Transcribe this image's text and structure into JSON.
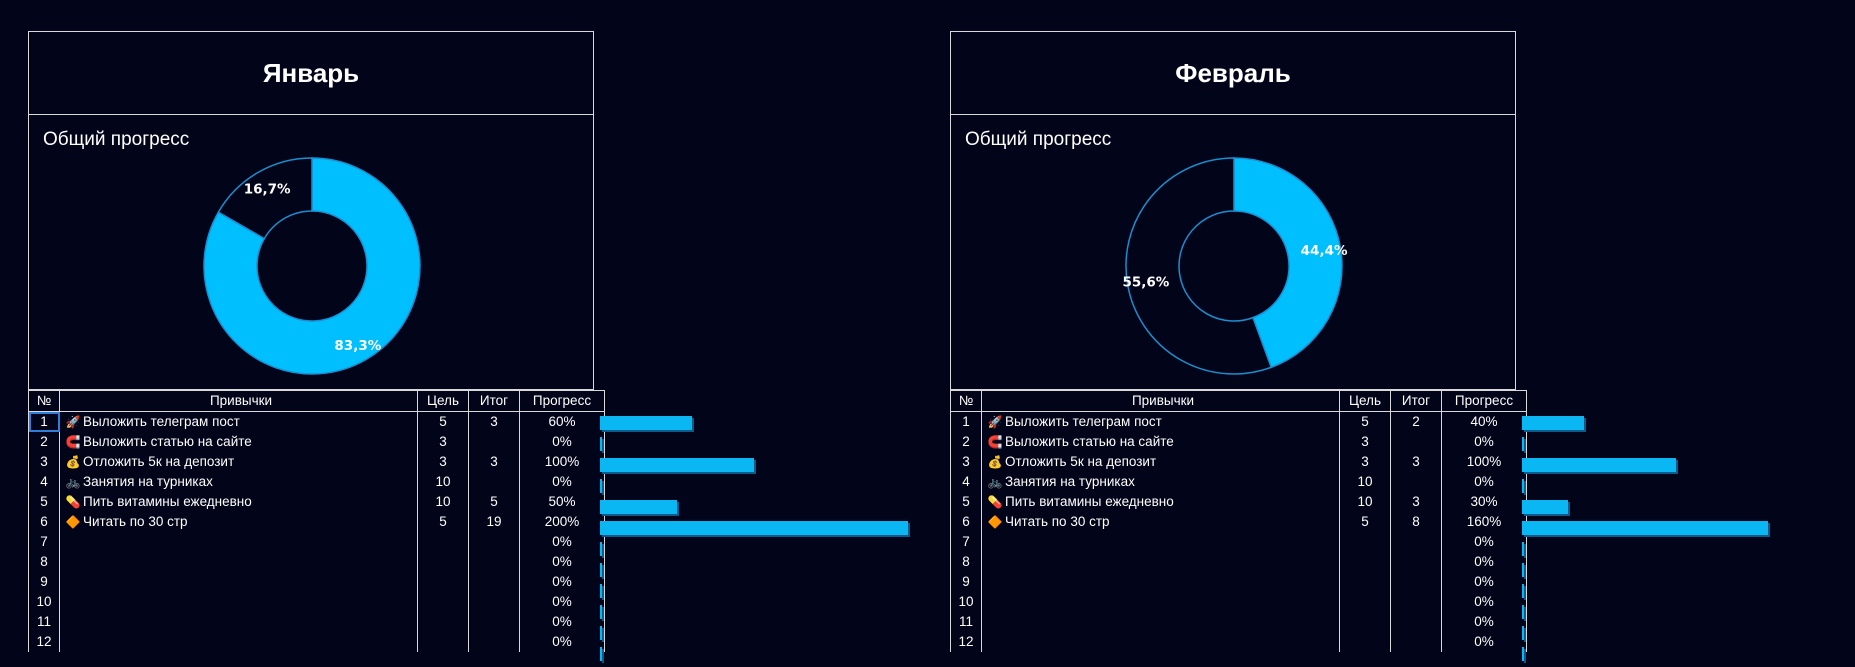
{
  "months": [
    {
      "title": "Январь",
      "chart_title": "Общий прогресс",
      "chart_data": {
        "type": "pie",
        "slices": [
          {
            "label": "83,3%",
            "value": 83.3,
            "color": "#00bfff"
          },
          {
            "label": "16,7%",
            "value": 16.7,
            "color": "#020419"
          }
        ]
      },
      "headers": {
        "num": "№",
        "name": "Привычки",
        "goal": "Цель",
        "total": "Итог",
        "progress": "Прогресс"
      },
      "rows": [
        {
          "num": "1",
          "icon": "🚀",
          "name": "Выложить телеграм пост",
          "goal": "5",
          "total": "3",
          "progress": "60%",
          "value": 60
        },
        {
          "num": "2",
          "icon": "🧲",
          "name": "Выложить статью на сайте",
          "goal": "3",
          "total": "",
          "progress": "0%",
          "value": 0
        },
        {
          "num": "3",
          "icon": "💰",
          "name": "Отложить 5к на депозит",
          "goal": "3",
          "total": "3",
          "progress": "100%",
          "value": 100
        },
        {
          "num": "4",
          "icon": "🚲",
          "name": "Занятия на турниках",
          "goal": "10",
          "total": "",
          "progress": "0%",
          "value": 0
        },
        {
          "num": "5",
          "icon": "💊",
          "name": "Пить витамины ежедневно",
          "goal": "10",
          "total": "5",
          "progress": "50%",
          "value": 50
        },
        {
          "num": "6",
          "icon": "🔶",
          "name": "Читать по 30 стр",
          "goal": "5",
          "total": "19",
          "progress": "200%",
          "value": 200
        },
        {
          "num": "7",
          "icon": "",
          "name": "",
          "goal": "",
          "total": "",
          "progress": "0%",
          "value": 0
        },
        {
          "num": "8",
          "icon": "",
          "name": "",
          "goal": "",
          "total": "",
          "progress": "0%",
          "value": 0
        },
        {
          "num": "9",
          "icon": "",
          "name": "",
          "goal": "",
          "total": "",
          "progress": "0%",
          "value": 0
        },
        {
          "num": "10",
          "icon": "",
          "name": "",
          "goal": "",
          "total": "",
          "progress": "0%",
          "value": 0
        },
        {
          "num": "11",
          "icon": "",
          "name": "",
          "goal": "",
          "total": "",
          "progress": "0%",
          "value": 0
        },
        {
          "num": "12",
          "icon": "",
          "name": "",
          "goal": "",
          "total": "",
          "progress": "0%",
          "value": 0
        }
      ]
    },
    {
      "title": "Февраль",
      "chart_title": "Общий прогресс",
      "chart_data": {
        "type": "pie",
        "slices": [
          {
            "label": "44,4%",
            "value": 44.4,
            "color": "#00bfff"
          },
          {
            "label": "55,6%",
            "value": 55.6,
            "color": "#020419"
          }
        ]
      },
      "headers": {
        "num": "№",
        "name": "Привычки",
        "goal": "Цель",
        "total": "Итог",
        "progress": "Прогресс"
      },
      "rows": [
        {
          "num": "1",
          "icon": "🚀",
          "name": "Выложить телеграм пост",
          "goal": "5",
          "total": "2",
          "progress": "40%",
          "value": 40
        },
        {
          "num": "2",
          "icon": "🧲",
          "name": "Выложить статью на сайте",
          "goal": "3",
          "total": "",
          "progress": "0%",
          "value": 0
        },
        {
          "num": "3",
          "icon": "💰",
          "name": "Отложить 5к на депозит",
          "goal": "3",
          "total": "3",
          "progress": "100%",
          "value": 100
        },
        {
          "num": "4",
          "icon": "🚲",
          "name": "Занятия на турниках",
          "goal": "10",
          "total": "",
          "progress": "0%",
          "value": 0
        },
        {
          "num": "5",
          "icon": "💊",
          "name": "Пить витамины ежедневно",
          "goal": "10",
          "total": "3",
          "progress": "30%",
          "value": 30
        },
        {
          "num": "6",
          "icon": "🔶",
          "name": "Читать по 30 стр",
          "goal": "5",
          "total": "8",
          "progress": "160%",
          "value": 160
        },
        {
          "num": "7",
          "icon": "",
          "name": "",
          "goal": "",
          "total": "",
          "progress": "0%",
          "value": 0
        },
        {
          "num": "8",
          "icon": "",
          "name": "",
          "goal": "",
          "total": "",
          "progress": "0%",
          "value": 0
        },
        {
          "num": "9",
          "icon": "",
          "name": "",
          "goal": "",
          "total": "",
          "progress": "0%",
          "value": 0
        },
        {
          "num": "10",
          "icon": "",
          "name": "",
          "goal": "",
          "total": "",
          "progress": "0%",
          "value": 0
        },
        {
          "num": "11",
          "icon": "",
          "name": "",
          "goal": "",
          "total": "",
          "progress": "0%",
          "value": 0
        },
        {
          "num": "12",
          "icon": "",
          "name": "",
          "goal": "",
          "total": "",
          "progress": "0%",
          "value": 0
        }
      ]
    }
  ]
}
